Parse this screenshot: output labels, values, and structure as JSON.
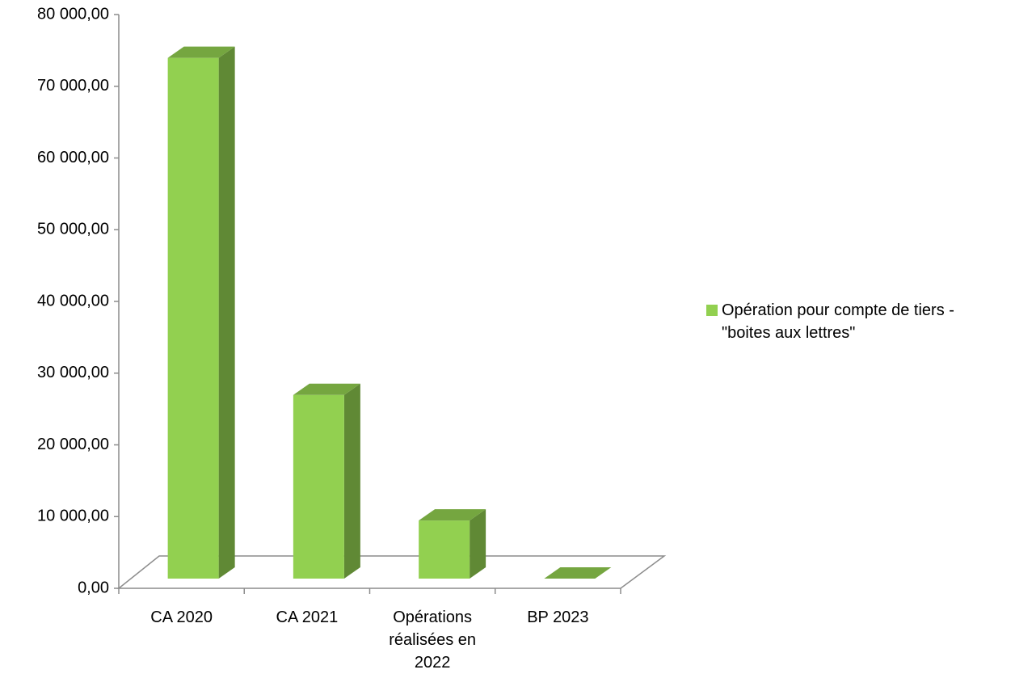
{
  "chart_data": {
    "type": "bar3d",
    "categories": [
      "CA 2020",
      "CA 2021",
      "Opérations réalisées en 2022",
      "BP 2023"
    ],
    "series": [
      {
        "name": "Opération pour compte de tiers - \"boites aux lettres\"",
        "color": "#92d050",
        "values": [
          72600,
          25600,
          8100,
          0
        ]
      }
    ],
    "ylim": [
      0,
      80000
    ],
    "yticks": [
      {
        "value": 0,
        "label": "0,00"
      },
      {
        "value": 10000,
        "label": "10 000,00"
      },
      {
        "value": 20000,
        "label": "20 000,00"
      },
      {
        "value": 30000,
        "label": "30 000,00"
      },
      {
        "value": 40000,
        "label": "40 000,00"
      },
      {
        "value": 50000,
        "label": "50 000,00"
      },
      {
        "value": 60000,
        "label": "60 000,00"
      },
      {
        "value": 70000,
        "label": "70 000,00"
      },
      {
        "value": 80000,
        "label": "80 000,00"
      }
    ],
    "legend": "right"
  }
}
